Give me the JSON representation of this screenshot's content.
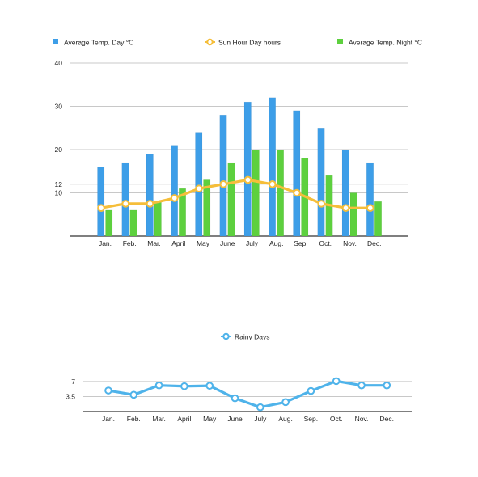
{
  "chart_data": [
    {
      "type": "bar",
      "categories": [
        "Jan.",
        "Feb.",
        "Mar.",
        "April",
        "May",
        "June",
        "July",
        "Aug.",
        "Sep.",
        "Oct.",
        "Nov.",
        "Dec."
      ],
      "yticks": [
        10,
        12,
        20,
        30,
        40
      ],
      "ylim": [
        0,
        40
      ],
      "grid": true,
      "legend_position": "top",
      "series": [
        {
          "name": "Average Temp. Day °C",
          "kind": "bar",
          "color": "#3d9ee8",
          "values": [
            16,
            17,
            19,
            21,
            24,
            28,
            31,
            32,
            29,
            25,
            20,
            17
          ]
        },
        {
          "name": "Sun Hour Day hours",
          "kind": "line",
          "color": "#f5be3a",
          "values": [
            6.5,
            7.5,
            7.5,
            8.8,
            11,
            12,
            13,
            12,
            10,
            7.5,
            6.5,
            6.5
          ]
        },
        {
          "name": "Average Temp. Night °C",
          "kind": "bar",
          "color": "#5dd03e",
          "values": [
            6,
            6,
            8,
            11,
            13,
            17,
            20,
            20,
            18,
            14,
            10,
            8
          ]
        }
      ]
    },
    {
      "type": "line",
      "categories": [
        "Jan.",
        "Feb.",
        "Mar.",
        "April",
        "May",
        "June",
        "July",
        "Aug.",
        "Sep.",
        "Oct.",
        "Nov.",
        "Dec."
      ],
      "yticks": [
        3.5,
        7
      ],
      "ylim": [
        0,
        8
      ],
      "grid": true,
      "legend_position": "top",
      "series": [
        {
          "name": "Rainy Days",
          "kind": "line",
          "color": "#4fb3ea",
          "values": [
            4.9,
            3.9,
            6.1,
            5.9,
            6,
            3.1,
            1,
            2.2,
            4.8,
            7.1,
            6.1,
            6.1
          ]
        }
      ]
    }
  ]
}
